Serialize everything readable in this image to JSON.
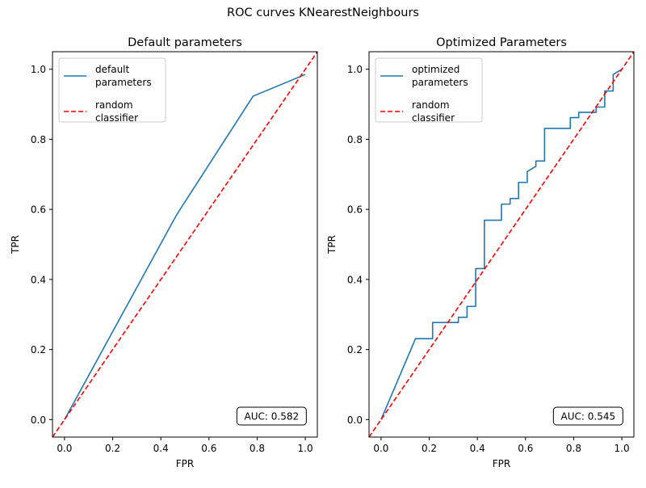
{
  "figure": {
    "suptitle": "ROC curves KNearestNeighbours"
  },
  "chart_data": [
    {
      "type": "line",
      "title": "Default parameters",
      "xlabel": "FPR",
      "ylabel": "TPR",
      "xlim": [
        -0.05,
        1.05
      ],
      "ylim": [
        -0.05,
        1.05
      ],
      "xticks": [
        0.0,
        0.2,
        0.4,
        0.6,
        0.8,
        1.0
      ],
      "yticks": [
        0.0,
        0.2,
        0.4,
        0.6,
        0.8,
        1.0
      ],
      "tick_labels": [
        "0.0",
        "0.2",
        "0.4",
        "0.6",
        "0.8",
        "1.0"
      ],
      "grid": false,
      "legend_position": "upper-left",
      "series": [
        {
          "name": "default\nparameters",
          "color": "#1f77b4",
          "style": "solid",
          "x": [
            0.0,
            0.466,
            0.783,
            1.0
          ],
          "y": [
            0.0,
            0.585,
            0.923,
            0.985
          ]
        },
        {
          "name": "random\nclassifier",
          "color": "#ff0000",
          "style": "dashed",
          "x": [
            -0.05,
            1.05
          ],
          "y": [
            -0.05,
            1.05
          ]
        }
      ],
      "annotation": "AUC: 0.582"
    },
    {
      "type": "line",
      "title": "Optimized Parameters",
      "xlabel": "FPR",
      "ylabel": "TPR",
      "xlim": [
        -0.05,
        1.05
      ],
      "ylim": [
        -0.05,
        1.05
      ],
      "xticks": [
        0.0,
        0.2,
        0.4,
        0.6,
        0.8,
        1.0
      ],
      "yticks": [
        0.0,
        0.2,
        0.4,
        0.6,
        0.8,
        1.0
      ],
      "tick_labels": [
        "0.0",
        "0.2",
        "0.4",
        "0.6",
        "0.8",
        "1.0"
      ],
      "grid": false,
      "legend_position": "upper-left",
      "series": [
        {
          "name": "optimized\nparameters",
          "color": "#1f77b4",
          "style": "solid",
          "x": [
            0.0,
            0.143,
            0.214,
            0.214,
            0.321,
            0.321,
            0.357,
            0.357,
            0.393,
            0.393,
            0.429,
            0.429,
            0.5,
            0.5,
            0.536,
            0.536,
            0.571,
            0.571,
            0.607,
            0.607,
            0.643,
            0.643,
            0.679,
            0.679,
            0.786,
            0.786,
            0.821,
            0.821,
            0.893,
            0.893,
            0.929,
            0.929,
            0.964,
            0.964,
            1.0
          ],
          "y": [
            0.0,
            0.231,
            0.231,
            0.277,
            0.277,
            0.292,
            0.292,
            0.323,
            0.323,
            0.431,
            0.431,
            0.569,
            0.569,
            0.615,
            0.615,
            0.631,
            0.631,
            0.677,
            0.677,
            0.708,
            0.723,
            0.738,
            0.738,
            0.831,
            0.831,
            0.862,
            0.862,
            0.877,
            0.877,
            0.892,
            0.892,
            0.938,
            0.938,
            0.985,
            1.0
          ]
        },
        {
          "name": "random\nclassifier",
          "color": "#ff0000",
          "style": "dashed",
          "x": [
            -0.05,
            1.05
          ],
          "y": [
            -0.05,
            1.05
          ]
        }
      ],
      "annotation": "AUC: 0.545"
    }
  ]
}
